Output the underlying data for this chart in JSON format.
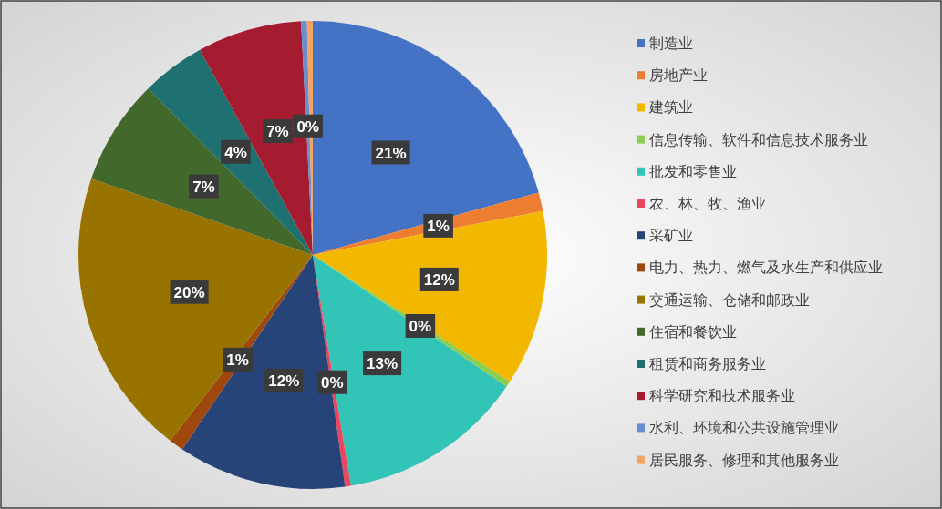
{
  "chart_data": {
    "type": "pie",
    "categories": [
      "制造业",
      "房地产业",
      "建筑业",
      "信息传输、软件和信息技术服务业",
      "批发和零售业",
      "农、林、牧、渔业",
      "采矿业",
      "电力、热力、燃气及水生产和供应业",
      "交通运输、仓储和邮政业",
      "住宿和餐饮业",
      "租赁和商务服务业",
      "科学研究和技术服务业",
      "水利、环境和公共设施管理业",
      "居民服务、修理和其他服务业"
    ],
    "values": [
      20.7,
      1.3,
      12.1,
      0.4,
      12.9,
      0.4,
      11.6,
      1.0,
      19.9,
      7.3,
      4.4,
      7.2,
      0.4,
      0.4
    ],
    "colors": [
      "#4472c4",
      "#ed7d31",
      "#f2b800",
      "#8ccf50",
      "#33c4b8",
      "#e8475f",
      "#264478",
      "#9e480e",
      "#997300",
      "#43682b",
      "#1f7070",
      "#a51c30",
      "#698ed0",
      "#f4a460"
    ],
    "value_labels": [
      "21%",
      "1%",
      "12%",
      "0%",
      "13%",
      "0%",
      "12%",
      "1%",
      "20%",
      "7%",
      "4%",
      "7%",
      "0%",
      null
    ],
    "legend": "right"
  }
}
